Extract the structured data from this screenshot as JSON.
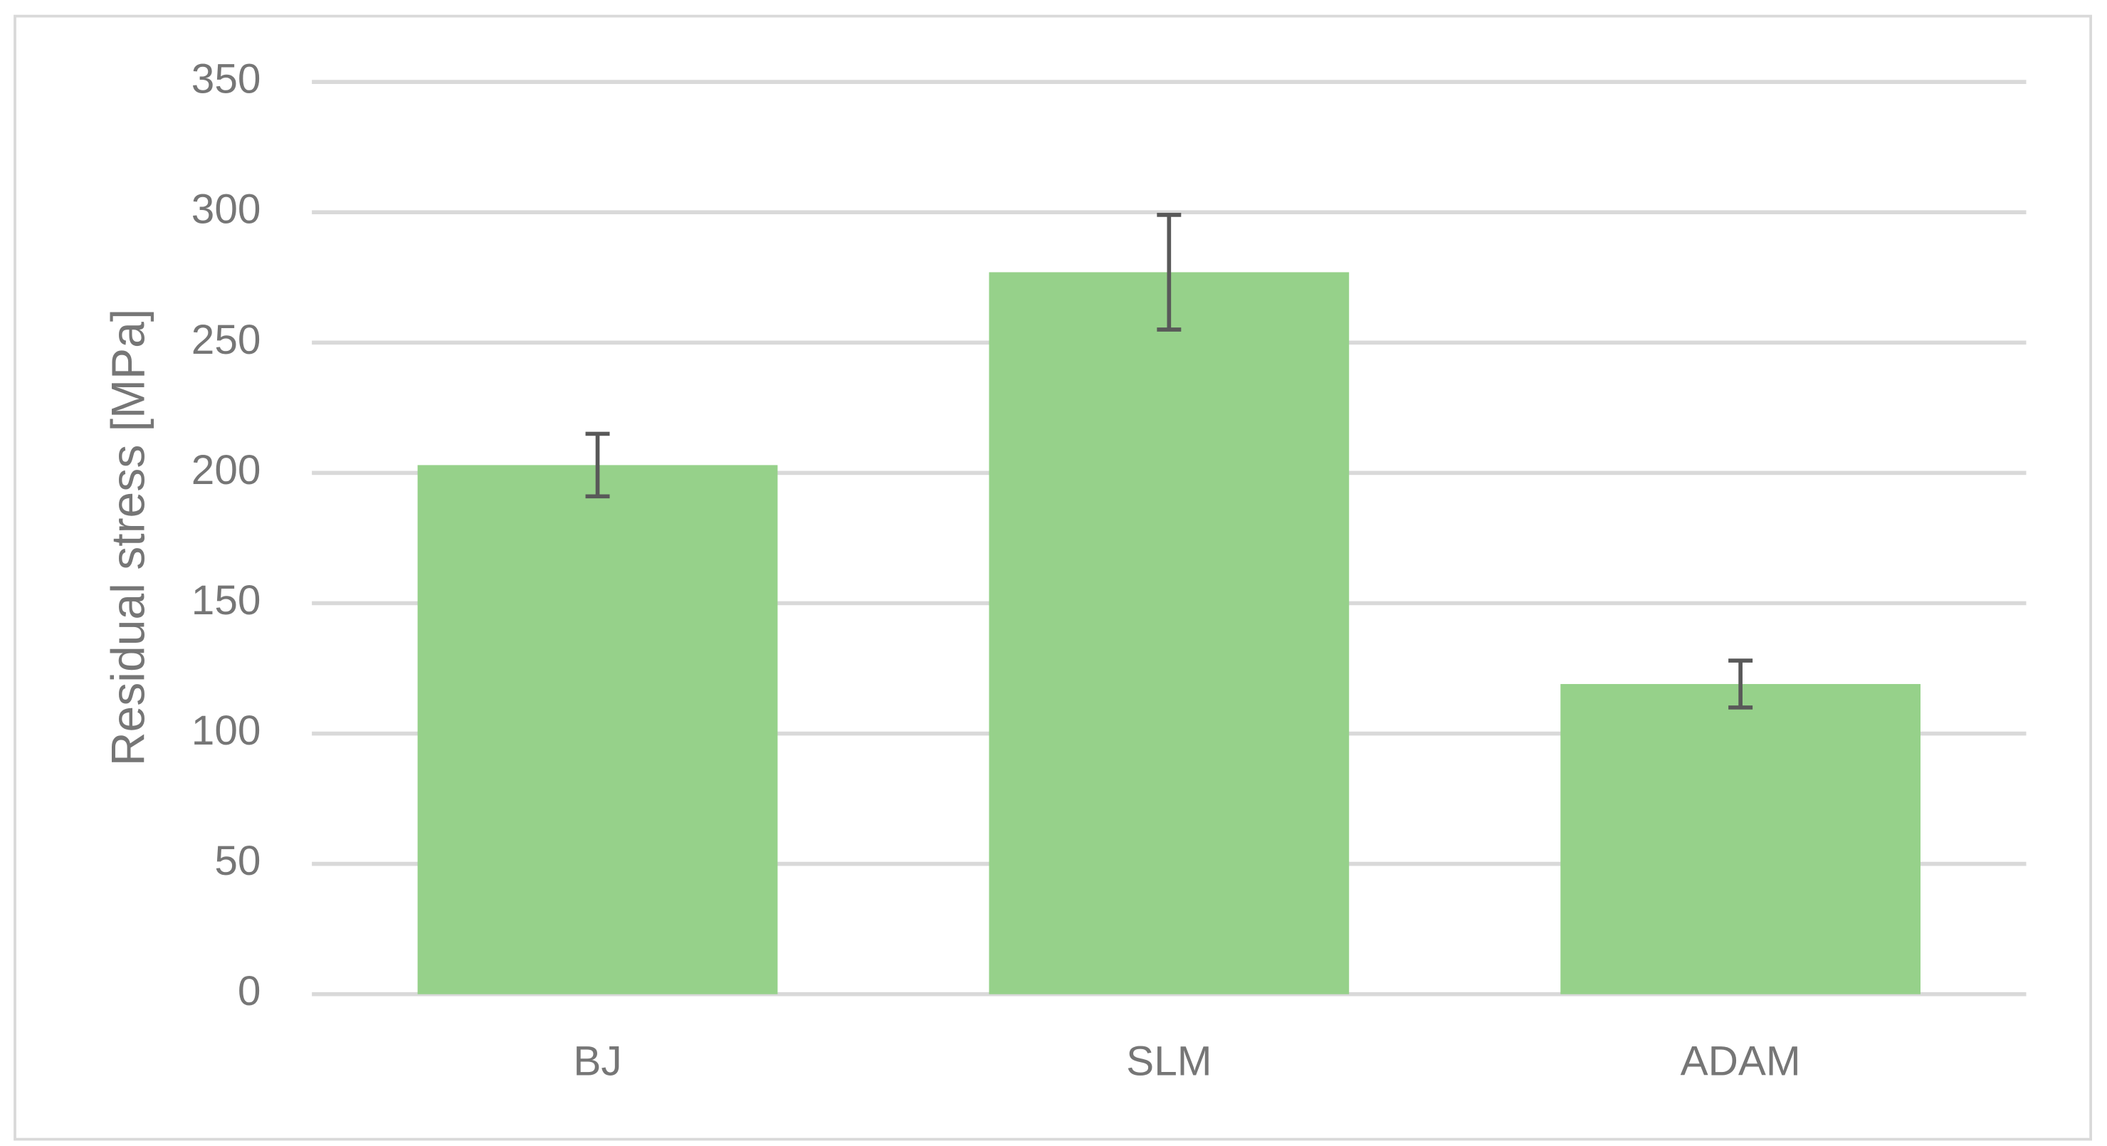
{
  "chart_data": {
    "type": "bar",
    "y_label": "Residual stress [MPa]",
    "categories": [
      "BJ",
      "SLM",
      "ADAM"
    ],
    "values": [
      203,
      277,
      119
    ],
    "errors": [
      12,
      22,
      9
    ],
    "color": "#96d18a",
    "error_color": "#595959",
    "ylim": [
      0,
      350
    ],
    "yticks": [
      0,
      50,
      100,
      150,
      200,
      250,
      300,
      350
    ],
    "grid": true
  }
}
